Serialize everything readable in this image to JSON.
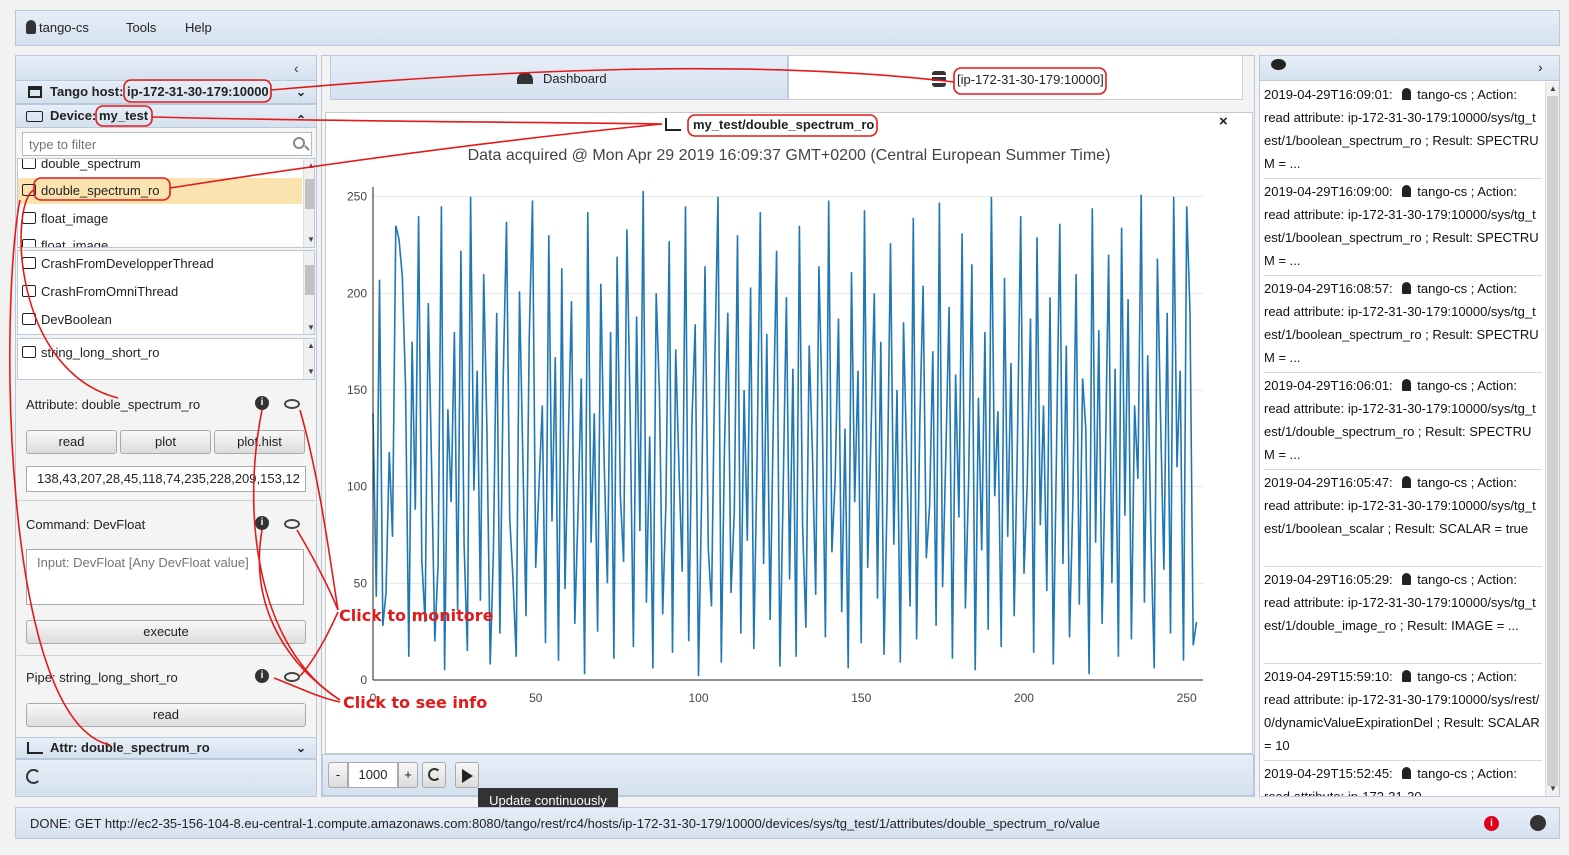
{
  "menu": {
    "user": "tango-cs",
    "tools": "Tools",
    "help": "Help"
  },
  "left": {
    "host_label": "Tango host:",
    "host_value": "ip-172-31-30-179:10000",
    "device_label": "Device:",
    "device_value": "my_test",
    "filter_placeholder": "type to filter",
    "attributes": [
      "double_spectrum",
      "double_spectrum_ro",
      "float_image",
      "float_image"
    ],
    "commands": [
      "CrashFromDevelopperThread",
      "CrashFromOmniThread",
      "DevBoolean"
    ],
    "pipes": [
      "string_long_short_ro"
    ],
    "attr_panel": {
      "title": "Attribute: double_spectrum_ro",
      "read": "read",
      "plot": "plot",
      "plot_hist": "plot.hist",
      "value": "138,43,207,28,45,118,74,235,228,209,153,12"
    },
    "cmd_panel": {
      "title": "Command: DevFloat",
      "placeholder": "Input: DevFloat [Any DevFloat value]",
      "execute": "execute"
    },
    "pipe_panel": {
      "title": "Pipe: string_long_short_ro",
      "read": "read"
    },
    "footer_label": "Attr: double_spectrum_ro"
  },
  "tabs": {
    "dashboard": "Dashboard",
    "host": "[ip-172-31-30-179:10000]"
  },
  "plot": {
    "title": "my_test/double_spectrum_ro",
    "subtitle": "Data acquired @ Mon Apr 29 2019 16:09:37 GMT+0200 (Central European Summer Time)",
    "period": "1000",
    "minus": "-",
    "plus": "+",
    "tooltip": "Update continuously"
  },
  "chart_data": {
    "type": "line",
    "title": "Data acquired @ Mon Apr 29 2019 16:09:37 GMT+0200 (Central European Summer Time)",
    "xlabel": "",
    "ylabel": "",
    "xlim": [
      0,
      255
    ],
    "ylim": [
      0,
      255
    ],
    "xticks": [
      0,
      50,
      100,
      150,
      200,
      250
    ],
    "yticks": [
      0,
      50,
      100,
      150,
      200,
      250
    ],
    "series": [
      {
        "values": [
          138,
          43,
          207,
          28,
          45,
          118,
          74,
          235,
          228,
          209,
          153,
          12,
          175,
          88,
          240,
          62,
          30,
          195,
          110,
          20,
          60,
          245,
          5,
          140,
          92,
          180,
          36,
          222,
          70,
          15,
          250,
          98,
          160,
          41,
          210,
          130,
          8,
          66,
          190,
          24,
          155,
          237,
          84,
          52,
          12,
          201,
          119,
          33,
          176,
          248,
          58,
          100,
          142,
          19,
          230,
          82,
          167,
          10,
          213,
          47,
          125,
          196,
          29,
          88,
          156,
          3,
          242,
          71,
          138,
          25,
          205,
          114,
          50,
          180,
          11,
          219,
          95,
          61,
          233,
          140,
          17,
          188,
          77,
          253,
          40,
          126,
          6,
          200,
          149,
          34,
          91,
          227,
          14,
          171,
          109,
          56,
          245,
          20,
          135,
          184,
          2,
          97,
          214,
          68,
          38,
          164,
          250,
          9,
          121,
          190,
          45,
          87,
          230,
          24,
          150,
          72,
          203,
          16,
          115,
          242,
          60,
          179,
          31,
          137,
          222,
          7,
          96,
          198,
          52,
          161,
          12,
          235,
          80,
          27,
          173,
          118,
          44,
          214,
          140,
          22,
          248,
          66,
          104,
          187,
          35,
          130,
          6,
          211,
          92,
          160,
          19,
          243,
          58,
          127,
          200,
          42,
          175,
          13,
          99,
          226,
          70,
          150,
          9,
          185,
          112,
          38,
          239,
          21,
          133,
          204,
          63,
          90,
          170,
          28,
          247,
          48,
          118,
          193,
          11,
          158,
          84,
          231,
          37,
          102,
          215,
          5,
          146,
          67,
          180,
          26,
          250,
          95,
          139,
          17,
          208,
          74,
          164,
          33,
          125,
          240,
          55,
          101,
          187,
          14,
          229,
          80,
          142,
          46,
          198,
          8,
          118,
          236,
          60,
          173,
          22,
          91,
          210,
          39,
          156,
          130,
          3,
          244,
          71,
          181,
          29,
          115,
          220,
          50,
          161,
          12,
          234,
          85,
          197,
          21,
          142,
          104,
          251,
          40,
          168,
          75,
          6,
          218,
          132,
          57,
          190,
          24,
          250,
          110,
          160,
          10,
          245,
          190,
          18,
          30
        ]
      }
    ]
  }
}
